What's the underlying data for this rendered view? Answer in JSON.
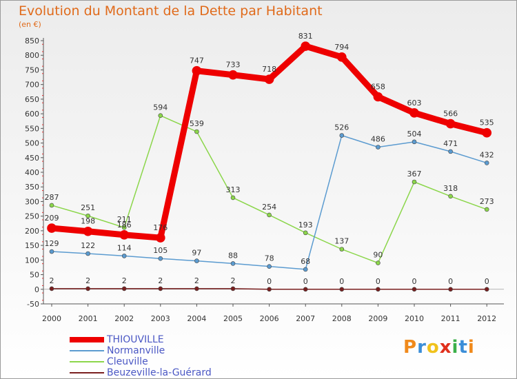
{
  "chart_data": {
    "type": "line",
    "title": "Evolution du Montant de la Dette par Habitant",
    "subtitle": "(en €)",
    "xlabel": "",
    "ylabel": "",
    "ylim": [
      -50,
      850
    ],
    "yticks": [
      "-50",
      "0",
      "50",
      "100",
      "150",
      "200",
      "250",
      "300",
      "350",
      "400",
      "450",
      "500",
      "550",
      "600",
      "650",
      "700",
      "750",
      "800",
      "850"
    ],
    "categories": [
      "2000",
      "2001",
      "2002",
      "2003",
      "2004",
      "2005",
      "2006",
      "2007",
      "2008",
      "2009",
      "2010",
      "2011",
      "2012"
    ],
    "series": [
      {
        "name": "Beuzeville-la-Guérard",
        "color": "#7a1f1f",
        "width": 1.5,
        "values": [
          2,
          2,
          2,
          2,
          2,
          2,
          0,
          0,
          0,
          0,
          0,
          0,
          0
        ],
        "labels": [
          "2",
          "2",
          "2",
          "2",
          "2",
          "2",
          "0",
          "0",
          "0",
          "0",
          "0",
          "0",
          "0"
        ]
      },
      {
        "name": "Cleuville",
        "color": "#8bd64a",
        "width": 1.5,
        "values": [
          287,
          251,
          211,
          594,
          539,
          313,
          254,
          193,
          137,
          90,
          367,
          318,
          273
        ],
        "labels": [
          "287",
          "251",
          "211",
          "594",
          "539",
          "313",
          "254",
          "193",
          "137",
          "90",
          "367",
          "318",
          "273"
        ]
      },
      {
        "name": "Normanville",
        "color": "#5b9bd0",
        "width": 1.5,
        "values": [
          129,
          122,
          114,
          105,
          97,
          88,
          78,
          68,
          526,
          486,
          504,
          471,
          432
        ],
        "labels": [
          "129",
          "122",
          "114",
          "105",
          "97",
          "88",
          "78",
          "68",
          "526",
          "486",
          "504",
          "471",
          "432"
        ]
      },
      {
        "name": "THIOUVILLE",
        "color": "#ee0000",
        "width": 9,
        "values": [
          209,
          198,
          186,
          176,
          747,
          733,
          718,
          831,
          794,
          658,
          603,
          566,
          535
        ],
        "labels": [
          "209",
          "198",
          "186",
          "176",
          "747",
          "733",
          "718",
          "831",
          "794",
          "658",
          "603",
          "566",
          "535"
        ]
      }
    ],
    "legend_order": [
      "THIOUVILLE",
      "Normanville",
      "Cleuville",
      "Beuzeville-la-Guérard"
    ],
    "legend_position": "bottom-left",
    "grid": false
  },
  "logo": {
    "letters": [
      "P",
      "r",
      "o",
      "x",
      "i",
      "t",
      "i"
    ],
    "colors": [
      "#f08a1c",
      "#3b8ed8",
      "#f0c21c",
      "#e0301c",
      "#3bb04a",
      "#3b8ed8",
      "#f08a1c"
    ]
  }
}
